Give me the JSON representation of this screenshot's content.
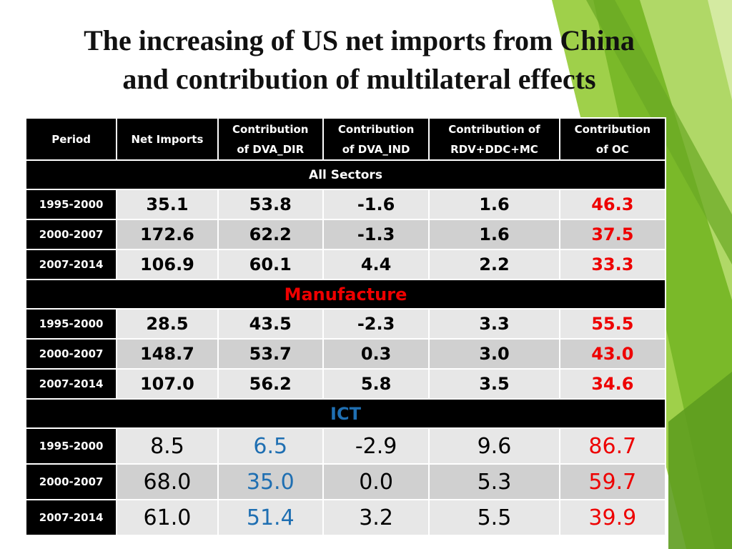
{
  "title_line1": "The increasing of US net imports from China",
  "title_line2": "and contribution of multilateral effects",
  "headers": {
    "period": "Period",
    "net_imports": "Net Imports",
    "dva_dir": [
      "Contribution",
      "of DVA_DIR"
    ],
    "dva_ind": [
      "Contribution",
      "of DVA_IND"
    ],
    "rdv": [
      "Contribution of",
      "RDV+DDC+MC"
    ],
    "oc": [
      "Contribution",
      "of OC"
    ]
  },
  "sections": [
    {
      "name": "All Sectors",
      "name_color": "#ffffff",
      "rows": [
        {
          "period": "1995-2000",
          "net": "35.1",
          "dva_dir": "53.8",
          "dva_ind": "-1.6",
          "rdv": "1.6",
          "oc": "46.3"
        },
        {
          "period": "2000-2007",
          "net": "172.6",
          "dva_dir": "62.2",
          "dva_ind": "-1.3",
          "rdv": "1.6",
          "oc": "37.5"
        },
        {
          "period": "2007-2014",
          "net": "106.9",
          "dva_dir": "60.1",
          "dva_ind": "4.4",
          "rdv": "2.2",
          "oc": "33.3"
        }
      ]
    },
    {
      "name": "Manufacture",
      "name_color": "#ee0000",
      "rows": [
        {
          "period": "1995-2000",
          "net": "28.5",
          "dva_dir": "43.5",
          "dva_ind": "-2.3",
          "rdv": "3.3",
          "oc": "55.5"
        },
        {
          "period": "2000-2007",
          "net": "148.7",
          "dva_dir": "53.7",
          "dva_ind": "0.3",
          "rdv": "3.0",
          "oc": "43.0"
        },
        {
          "period": "2007-2014",
          "net": "107.0",
          "dva_dir": "56.2",
          "dva_ind": "5.8",
          "rdv": "3.5",
          "oc": "34.6"
        }
      ]
    },
    {
      "name": "ICT",
      "name_color": "#1f6fb2",
      "rows": [
        {
          "period": "1995-2000",
          "net": "8.5",
          "dva_dir": "6.5",
          "dva_ind": "-2.9",
          "rdv": "9.6",
          "oc": "86.7"
        },
        {
          "period": "2000-2007",
          "net": "68.0",
          "dva_dir": "35.0",
          "dva_ind": "0.0",
          "rdv": "5.3",
          "oc": "59.7"
        },
        {
          "period": "2007-2014",
          "net": "61.0",
          "dva_dir": "51.4",
          "dva_ind": "3.2",
          "rdv": "5.5",
          "oc": "39.9"
        }
      ]
    }
  ],
  "colors": {
    "oc_value": "#ee0000",
    "ict_dva_dir_value": "#1f6fb2",
    "decoration_green": "#7ab929"
  }
}
